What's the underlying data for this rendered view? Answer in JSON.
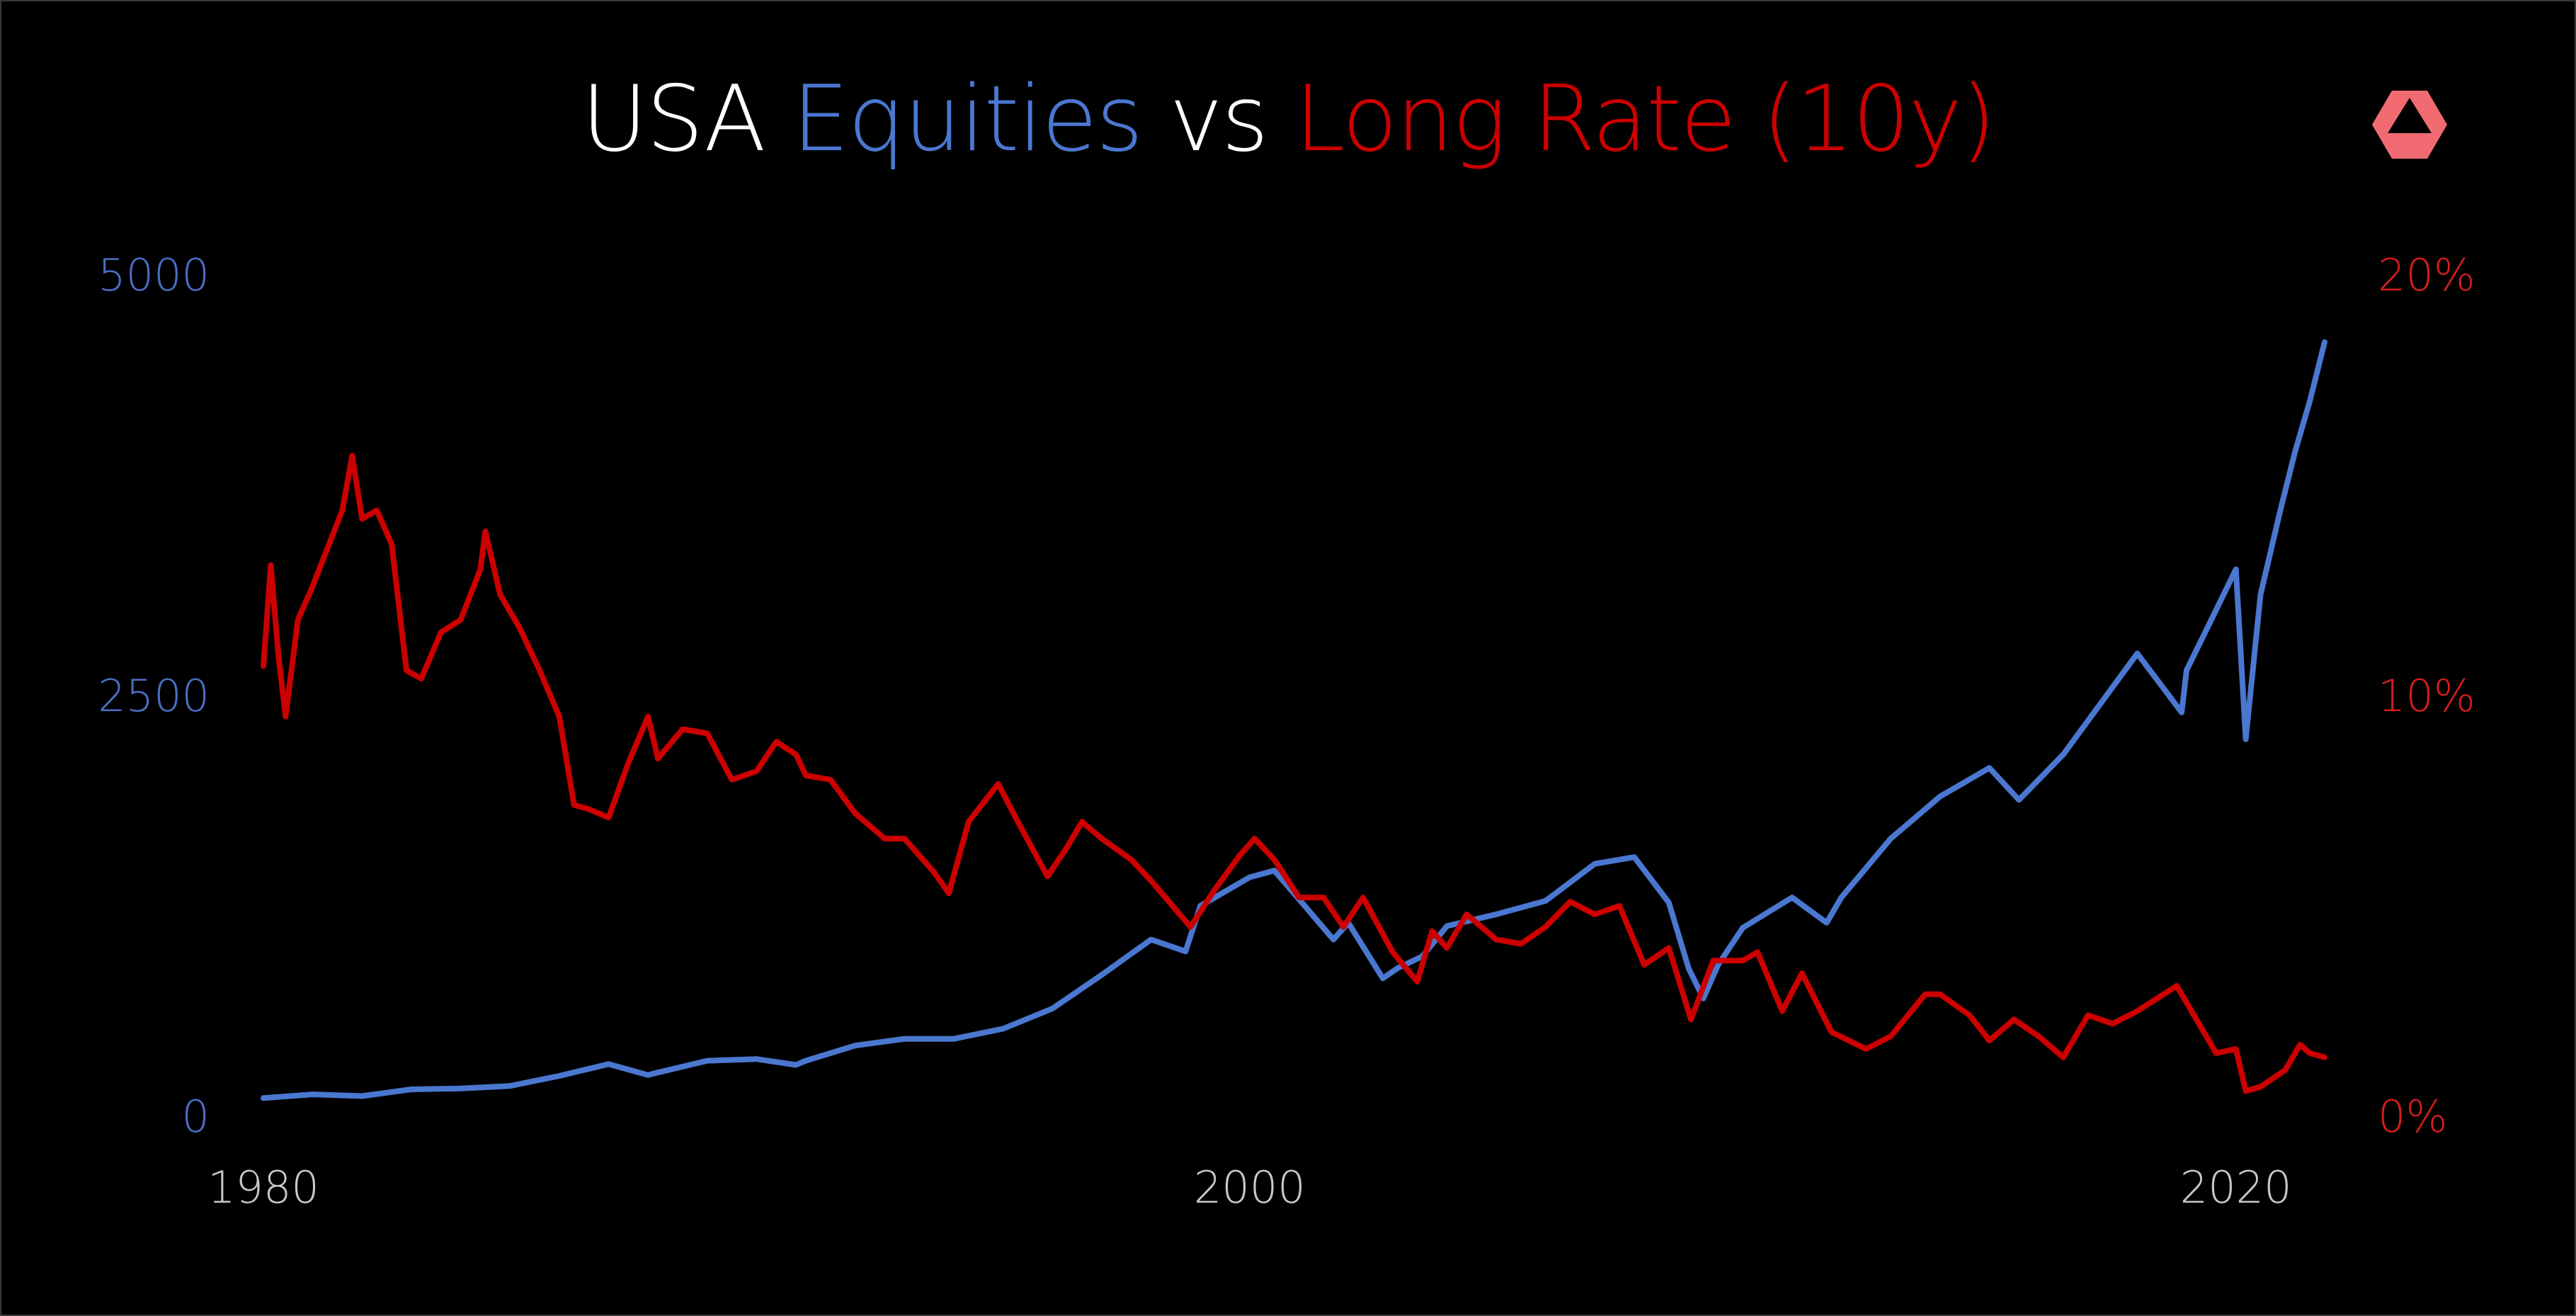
{
  "title": {
    "part1": "USA ",
    "part2": "Equities",
    "part3": " vs ",
    "part4": "Long Rate (10y)"
  },
  "colors": {
    "background": "#000000",
    "white": "#ffffff",
    "equities": "#4a77d0",
    "equities_axis": "#4a6fc4",
    "rate": "#cc0000",
    "rate_axis": "#d61c1c",
    "tick_x": "#c8c8c8",
    "logo": "#f26b72"
  },
  "logo_icon": "triangle-hexagon-logo-icon",
  "chart_data": {
    "type": "line",
    "x_ticks": [
      "1980",
      "2000",
      "2020"
    ],
    "xlim": [
      1980,
      2021.9
    ],
    "y_left": {
      "ticks": [
        "5000",
        "2500",
        "0"
      ],
      "lim": [
        0,
        5000
      ]
    },
    "y_right": {
      "ticks": [
        "20%",
        "10%",
        "0%"
      ],
      "lim": [
        0,
        20
      ]
    },
    "series": [
      {
        "name": "Equities",
        "axis": "left",
        "color": "#4a77d0",
        "points": [
          [
            1980.0,
            108
          ],
          [
            1981.0,
            130
          ],
          [
            1982.0,
            120
          ],
          [
            1983.0,
            160
          ],
          [
            1984.0,
            165
          ],
          [
            1985.0,
            180
          ],
          [
            1986.0,
            240
          ],
          [
            1987.0,
            310
          ],
          [
            1987.8,
            245
          ],
          [
            1988.0,
            260
          ],
          [
            1989.0,
            330
          ],
          [
            1990.0,
            340
          ],
          [
            1990.8,
            305
          ],
          [
            1991.0,
            330
          ],
          [
            1992.0,
            420
          ],
          [
            1993.0,
            460
          ],
          [
            1994.0,
            460
          ],
          [
            1995.0,
            520
          ],
          [
            1996.0,
            640
          ],
          [
            1997.0,
            840
          ],
          [
            1998.0,
            1050
          ],
          [
            1998.7,
            980
          ],
          [
            1999.0,
            1250
          ],
          [
            2000.0,
            1420
          ],
          [
            2000.5,
            1460
          ],
          [
            2001.0,
            1290
          ],
          [
            2001.7,
            1050
          ],
          [
            2002.0,
            1150
          ],
          [
            2002.7,
            820
          ],
          [
            2003.0,
            880
          ],
          [
            2003.5,
            950
          ],
          [
            2004.0,
            1130
          ],
          [
            2005.0,
            1200
          ],
          [
            2006.0,
            1280
          ],
          [
            2007.0,
            1500
          ],
          [
            2007.8,
            1540
          ],
          [
            2008.5,
            1270
          ],
          [
            2008.9,
            880
          ],
          [
            2009.2,
            700
          ],
          [
            2009.5,
            900
          ],
          [
            2010.0,
            1120
          ],
          [
            2011.0,
            1300
          ],
          [
            2011.7,
            1150
          ],
          [
            2012.0,
            1300
          ],
          [
            2013.0,
            1650
          ],
          [
            2014.0,
            1900
          ],
          [
            2015.0,
            2070
          ],
          [
            2015.6,
            1880
          ],
          [
            2016.0,
            2000
          ],
          [
            2016.5,
            2150
          ],
          [
            2017.0,
            2350
          ],
          [
            2018.0,
            2750
          ],
          [
            2018.9,
            2400
          ],
          [
            2019.0,
            2650
          ],
          [
            2019.5,
            2950
          ],
          [
            2020.0,
            3250
          ],
          [
            2020.2,
            2240
          ],
          [
            2020.5,
            3100
          ],
          [
            2020.9,
            3600
          ],
          [
            2021.2,
            3950
          ],
          [
            2021.5,
            4250
          ],
          [
            2021.8,
            4600
          ]
        ]
      },
      {
        "name": "Long Rate (10y)",
        "axis": "right",
        "color": "#cc0000",
        "points": [
          [
            1980.0,
            10.7
          ],
          [
            1980.15,
            13.1
          ],
          [
            1980.3,
            11.0
          ],
          [
            1980.45,
            9.5
          ],
          [
            1980.7,
            11.8
          ],
          [
            1981.0,
            12.6
          ],
          [
            1981.3,
            13.5
          ],
          [
            1981.6,
            14.4
          ],
          [
            1981.8,
            15.7
          ],
          [
            1982.0,
            14.2
          ],
          [
            1982.3,
            14.4
          ],
          [
            1982.6,
            13.6
          ],
          [
            1982.9,
            10.6
          ],
          [
            1983.2,
            10.4
          ],
          [
            1983.6,
            11.5
          ],
          [
            1984.0,
            11.8
          ],
          [
            1984.4,
            13.0
          ],
          [
            1984.5,
            13.9
          ],
          [
            1984.8,
            12.4
          ],
          [
            1985.2,
            11.6
          ],
          [
            1985.6,
            10.6
          ],
          [
            1986.0,
            9.5
          ],
          [
            1986.3,
            7.4
          ],
          [
            1986.6,
            7.3
          ],
          [
            1987.0,
            7.1
          ],
          [
            1987.4,
            8.4
          ],
          [
            1987.8,
            9.5
          ],
          [
            1988.0,
            8.5
          ],
          [
            1988.5,
            9.2
          ],
          [
            1989.0,
            9.1
          ],
          [
            1989.5,
            8.0
          ],
          [
            1990.0,
            8.2
          ],
          [
            1990.4,
            8.9
          ],
          [
            1990.8,
            8.6
          ],
          [
            1991.0,
            8.1
          ],
          [
            1991.5,
            8.0
          ],
          [
            1992.0,
            7.2
          ],
          [
            1992.6,
            6.6
          ],
          [
            1993.0,
            6.6
          ],
          [
            1993.6,
            5.8
          ],
          [
            1993.9,
            5.3
          ],
          [
            1994.3,
            7.0
          ],
          [
            1994.9,
            7.9
          ],
          [
            1995.3,
            7.0
          ],
          [
            1995.9,
            5.7
          ],
          [
            1996.3,
            6.4
          ],
          [
            1996.6,
            7.0
          ],
          [
            1997.0,
            6.6
          ],
          [
            1997.6,
            6.1
          ],
          [
            1998.0,
            5.6
          ],
          [
            1998.8,
            4.5
          ],
          [
            1999.3,
            5.4
          ],
          [
            1999.8,
            6.2
          ],
          [
            2000.1,
            6.6
          ],
          [
            2000.5,
            6.1
          ],
          [
            2001.0,
            5.2
          ],
          [
            2001.5,
            5.2
          ],
          [
            2001.9,
            4.5
          ],
          [
            2002.3,
            5.2
          ],
          [
            2002.9,
            3.9
          ],
          [
            2003.4,
            3.2
          ],
          [
            2003.7,
            4.4
          ],
          [
            2004.0,
            4.0
          ],
          [
            2004.4,
            4.8
          ],
          [
            2005.0,
            4.2
          ],
          [
            2005.5,
            4.1
          ],
          [
            2006.0,
            4.5
          ],
          [
            2006.5,
            5.1
          ],
          [
            2007.0,
            4.8
          ],
          [
            2007.5,
            5.0
          ],
          [
            2008.0,
            3.6
          ],
          [
            2008.5,
            4.0
          ],
          [
            2008.95,
            2.3
          ],
          [
            2009.4,
            3.7
          ],
          [
            2010.0,
            3.7
          ],
          [
            2010.3,
            3.9
          ],
          [
            2010.8,
            2.5
          ],
          [
            2011.2,
            3.4
          ],
          [
            2011.8,
            2.0
          ],
          [
            2012.5,
            1.6
          ],
          [
            2013.0,
            1.9
          ],
          [
            2013.7,
            2.9
          ],
          [
            2014.0,
            2.9
          ],
          [
            2014.6,
            2.4
          ],
          [
            2015.0,
            1.8
          ],
          [
            2015.5,
            2.3
          ],
          [
            2016.0,
            1.9
          ],
          [
            2016.5,
            1.4
          ],
          [
            2017.0,
            2.4
          ],
          [
            2017.5,
            2.2
          ],
          [
            2018.0,
            2.5
          ],
          [
            2018.8,
            3.1
          ],
          [
            2019.0,
            2.7
          ],
          [
            2019.6,
            1.5
          ],
          [
            2020.0,
            1.6
          ],
          [
            2020.2,
            0.6
          ],
          [
            2020.5,
            0.7
          ],
          [
            2021.0,
            1.1
          ],
          [
            2021.3,
            1.7
          ],
          [
            2021.5,
            1.5
          ],
          [
            2021.8,
            1.4
          ]
        ]
      }
    ]
  }
}
